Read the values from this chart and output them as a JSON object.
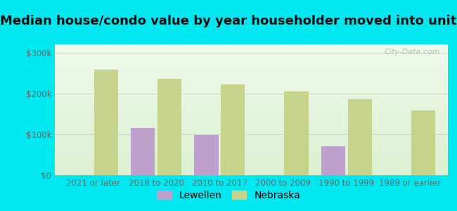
{
  "title": "Median house/condo value by year householder moved into unit",
  "categories": [
    "2021 or later",
    "2018 to 2020",
    "2010 to 2017",
    "2000 to 2009",
    "1990 to 1999",
    "1989 or earlier"
  ],
  "lewellen_values": [
    null,
    115000,
    98000,
    null,
    70000,
    null
  ],
  "nebraska_values": [
    258000,
    235000,
    222000,
    205000,
    185000,
    158000
  ],
  "lewellen_color": "#bf9fcc",
  "nebraska_color": "#c5d48a",
  "background_outer": "#00e8f0",
  "background_inner": "#dff0d8",
  "yticks": [
    0,
    100000,
    200000,
    300000
  ],
  "ytick_labels": [
    "$0",
    "$100k",
    "$200k",
    "$300k"
  ],
  "ylim": [
    0,
    320000
  ],
  "bar_width": 0.38,
  "watermark": "City-Data.com",
  "legend_lewellen": "Lewellen",
  "legend_nebraska": "Nebraska",
  "title_fontsize": 13,
  "tick_fontsize": 8.5,
  "legend_fontsize": 10,
  "title_color": "#111111",
  "tick_color": "#666666"
}
